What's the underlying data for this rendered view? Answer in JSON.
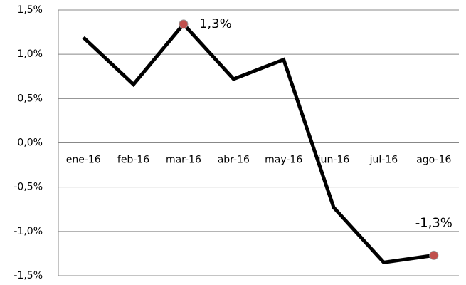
{
  "chart_data": {
    "type": "line",
    "categories": [
      "ene-16",
      "feb-16",
      "mar-16",
      "abr-16",
      "may-16",
      "jun-16",
      "jul-16",
      "ago-16"
    ],
    "series": [
      {
        "color": "#000000",
        "values": [
          1.19,
          0.66,
          1.34,
          0.72,
          0.94,
          -0.73,
          -1.35,
          -1.27
        ],
        "value_labels": [
          null,
          null,
          "1,3%",
          null,
          null,
          null,
          null,
          "-1,3%"
        ]
      }
    ],
    "marker_color": "#c0504d",
    "ylim": [
      -1.5,
      1.5
    ],
    "yticks": [
      {
        "value": -1.5,
        "label": "-1,5%"
      },
      {
        "value": -1.0,
        "label": "-1,0%"
      },
      {
        "value": -0.5,
        "label": "-0,5%"
      },
      {
        "value": 0,
        "label": "0,0%"
      },
      {
        "value": 0.5,
        "label": "0,5%"
      },
      {
        "value": 1.0,
        "label": "1,0%"
      },
      {
        "value": 1.5,
        "label": "1,5%"
      }
    ],
    "grid": true
  }
}
